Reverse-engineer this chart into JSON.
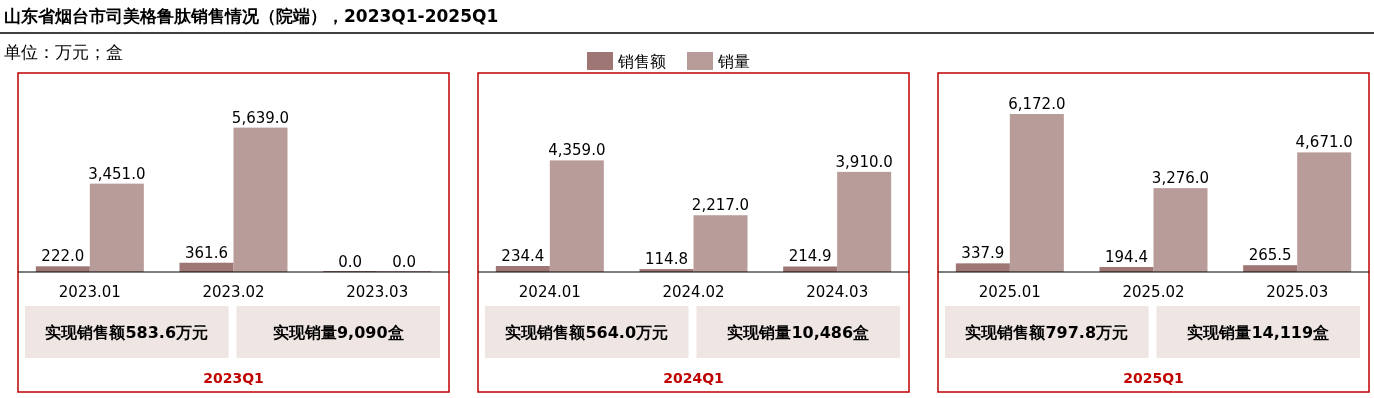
{
  "chart_data": [
    {
      "type": "bar",
      "title": "山东省烟台市司美格鲁肽销售情况（院端），2023Q1-2025Q1",
      "subtitle": "单位：万元；盒",
      "xlabel": "2023Q1",
      "categories": [
        "2023.01",
        "2023.02",
        "2023.03"
      ],
      "legend": "top",
      "series": [
        {
          "name": "销售额",
          "color": "#9e7774",
          "values": [
            222.0,
            361.6,
            0.0
          ],
          "value_labels": [
            "222.0",
            "361.6",
            "0.0"
          ]
        },
        {
          "name": "销量",
          "color": "#b89c9a",
          "values": [
            3451.0,
            5639.0,
            0.0
          ],
          "value_labels": [
            "3,451.0",
            "5,639.0",
            "0.0"
          ]
        }
      ],
      "annotations": [
        "实现销售额583.6万元",
        "实现销量9,090盒"
      ]
    },
    {
      "type": "bar",
      "xlabel": "2024Q1",
      "categories": [
        "2024.01",
        "2024.02",
        "2024.03"
      ],
      "series": [
        {
          "color": "#9e7774",
          "values": [
            234.4,
            114.8,
            214.9
          ],
          "value_labels": [
            "234.4",
            "114.8",
            "214.9"
          ]
        },
        {
          "color": "#b89c9a",
          "values": [
            4359.0,
            2217.0,
            3910.0
          ],
          "value_labels": [
            "4,359.0",
            "2,217.0",
            "3,910.0"
          ]
        }
      ],
      "annotations": [
        "实现销售额564.0万元",
        "实现销量10,486盒"
      ]
    },
    {
      "type": "bar",
      "xlabel": "2025Q1",
      "categories": [
        "2025.01",
        "2025.02",
        "2025.03"
      ],
      "series": [
        {
          "color": "#9e7774",
          "values": [
            337.9,
            194.4,
            265.5
          ],
          "value_labels": [
            "337.9",
            "194.4",
            "265.5"
          ]
        },
        {
          "color": "#b89c9a",
          "values": [
            6172.0,
            3276.0,
            4671.0
          ],
          "value_labels": [
            "6,172.0",
            "3,276.0",
            "4,671.0"
          ]
        }
      ],
      "annotations": [
        "实现销售额797.8万元",
        "实现销量14,119盒"
      ]
    }
  ]
}
